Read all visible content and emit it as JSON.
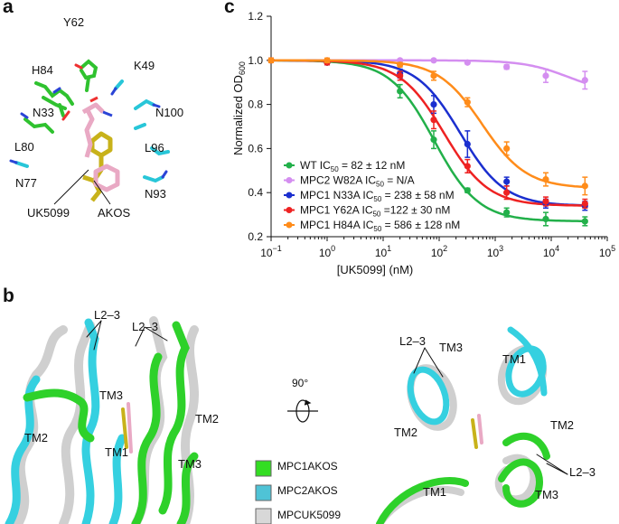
{
  "panels": {
    "a": "a",
    "b": "b",
    "c": "c"
  },
  "panel_a": {
    "residues": [
      "Y62",
      "K49",
      "H84",
      "N33",
      "N100",
      "L80",
      "L96",
      "N77",
      "N93"
    ],
    "ligands": [
      "UK5099",
      "AKOS"
    ]
  },
  "panel_b": {
    "left_labels": [
      "L2–3",
      "L2–3",
      "TM3",
      "TM2",
      "TM1",
      "TM2",
      "TM3"
    ],
    "right_labels": [
      "L2–3",
      "TM3",
      "TM1",
      "TM2",
      "TM2",
      "TM1",
      "L2–3",
      "TM3"
    ],
    "rotation": "90°",
    "legend": [
      {
        "label": "MPC1AKOS",
        "color": "#33dd22"
      },
      {
        "label": "MPC2AKOS",
        "color": "#4fc3d6"
      },
      {
        "label": "MPCUK5099",
        "color": "#d8d8d8"
      }
    ]
  },
  "chart_data": {
    "type": "scatter",
    "x_scale": "log",
    "xlim": [
      0.1,
      100000
    ],
    "ylim": [
      0.2,
      1.2
    ],
    "xlabel": "[UK5099] (nM)",
    "ylabel": "Normalized OD",
    "ylabel_sub": "600",
    "x_tick_labels": [
      "10",
      "−1",
      "10",
      "0",
      "10",
      "1",
      "10",
      "2",
      "10",
      "3",
      "10",
      "4",
      "10",
      "5"
    ],
    "y_tick_labels": [
      "0.2",
      "0.4",
      "0.6",
      "0.8",
      "1.0",
      "1.2"
    ],
    "y_ticks": [
      0.2,
      0.4,
      0.6,
      0.8,
      1.0,
      1.2
    ],
    "x_ticks": [
      0.1,
      1,
      10,
      100,
      1000,
      10000,
      100000
    ],
    "legend_pre": [
      "WT IC",
      "MPC2 W82A IC",
      "MPC1 N33A IC",
      "MPC1 Y62A IC",
      "MPC1 H84A IC"
    ],
    "legend_sub": "50",
    "legend_post": [
      "= 82 ± 12 nM",
      "= N/A",
      "= 238 ± 58 nM",
      "=122 ± 30 nM",
      "= 586 ± 128 nM"
    ],
    "series": [
      {
        "name": "WT",
        "color": "#22b04a",
        "x": [
          0.1,
          1,
          20,
          80,
          320,
          1600,
          8000,
          40000
        ],
        "y": [
          1.0,
          0.99,
          0.86,
          0.64,
          0.41,
          0.31,
          0.28,
          0.27
        ],
        "err": [
          0.01,
          0.01,
          0.03,
          0.04,
          0.01,
          0.02,
          0.03,
          0.02
        ],
        "ic50": 82,
        "bottom": 0.27
      },
      {
        "name": "MPC2 W82A",
        "color": "#d48ef0",
        "x": [
          0.1,
          1,
          20,
          80,
          320,
          1600,
          8000,
          40000
        ],
        "y": [
          1.0,
          1.0,
          1.0,
          1.0,
          0.99,
          0.97,
          0.93,
          0.91
        ],
        "err": [
          0.005,
          0.005,
          0.005,
          0.005,
          0.005,
          0.01,
          0.03,
          0.04
        ],
        "ic50": 20000,
        "bottom": 0.85
      },
      {
        "name": "MPC1 N33A",
        "color": "#1b2fcf",
        "x": [
          0.1,
          1,
          20,
          80,
          320,
          1600,
          8000,
          40000
        ],
        "y": [
          1.0,
          0.99,
          0.94,
          0.8,
          0.62,
          0.45,
          0.35,
          0.34
        ],
        "err": [
          0.01,
          0.01,
          0.02,
          0.04,
          0.06,
          0.02,
          0.02,
          0.02
        ],
        "ic50": 238,
        "bottom": 0.34
      },
      {
        "name": "MPC1 Y62A",
        "color": "#ee2222",
        "x": [
          0.1,
          1,
          20,
          80,
          320,
          1600,
          8000,
          40000
        ],
        "y": [
          1.0,
          0.99,
          0.93,
          0.73,
          0.52,
          0.4,
          0.36,
          0.35
        ],
        "err": [
          0.01,
          0.01,
          0.02,
          0.04,
          0.03,
          0.03,
          0.02,
          0.02
        ],
        "ic50": 122,
        "bottom": 0.34
      },
      {
        "name": "MPC1 H84A",
        "color": "#ff8c1a",
        "x": [
          0.1,
          1,
          20,
          80,
          320,
          1600,
          8000,
          40000
        ],
        "y": [
          1.0,
          1.0,
          0.98,
          0.93,
          0.81,
          0.6,
          0.46,
          0.43
        ],
        "err": [
          0.01,
          0.01,
          0.01,
          0.02,
          0.02,
          0.03,
          0.03,
          0.04
        ],
        "ic50": 586,
        "bottom": 0.42
      }
    ]
  }
}
